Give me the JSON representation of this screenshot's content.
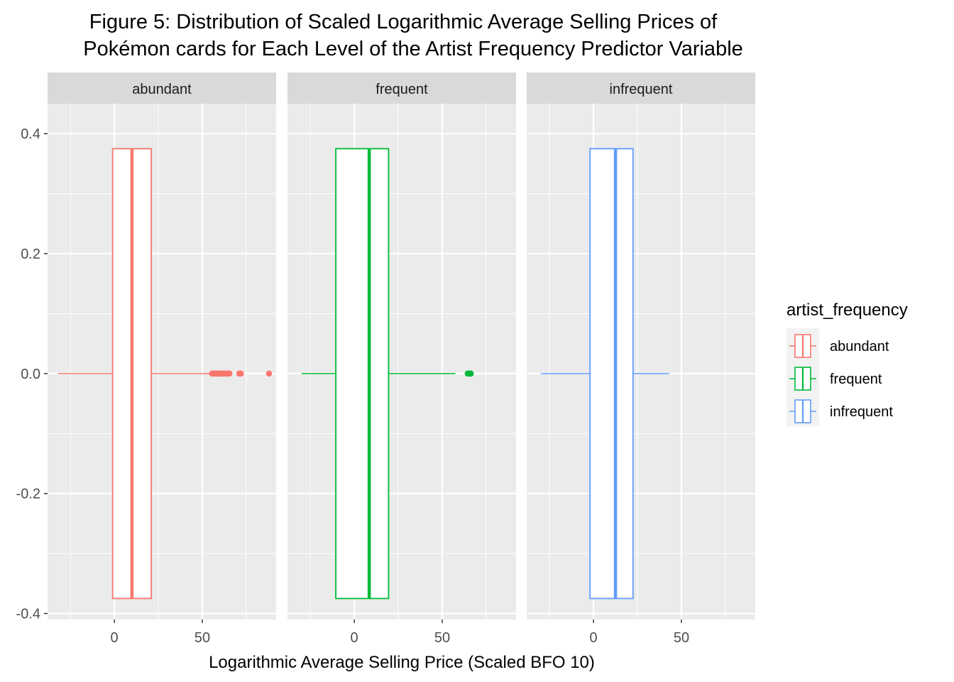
{
  "chart_data": {
    "type": "boxplot",
    "title_lines": [
      "Figure 5: Distribution of Scaled Logarithmic Average Selling Prices of",
      "Pokémon cards for Each Level of the Artist Frequency Predictor Variable"
    ],
    "xlabel": "Logarithmic Average Selling Price (Scaled BFO 10)",
    "ylabel": "",
    "xlim": [
      -38,
      92
    ],
    "ylim": [
      -0.41,
      0.45
    ],
    "x_ticks": [
      0,
      50
    ],
    "y_ticks": [
      -0.4,
      -0.2,
      0.0,
      0.2,
      0.4
    ],
    "y_tick_labels": [
      "-0.4",
      "-0.2",
      "0.0",
      "0.2",
      "0.4"
    ],
    "box_y_extent": [
      -0.375,
      0.375
    ],
    "grid": true,
    "legend": {
      "title": "artist_frequency",
      "position": "right",
      "entries": [
        "abundant",
        "frequent",
        "infrequent"
      ]
    },
    "facets": [
      {
        "name": "abundant",
        "color": "#F8766D",
        "whisker_low": -32,
        "q1": -1,
        "median": 10,
        "q3": 21,
        "whisker_high": 55,
        "outliers": [
          55.5,
          56,
          56.5,
          57,
          57.5,
          58,
          58.5,
          59,
          59.5,
          60,
          60.5,
          61,
          61.5,
          62,
          62.5,
          63,
          63.5,
          64,
          64.5,
          65,
          65.5,
          71,
          71.5,
          72,
          88
        ]
      },
      {
        "name": "frequent",
        "color": "#00BA38",
        "whisker_low": -30,
        "q1": -10.5,
        "median": 8.5,
        "q3": 19.5,
        "whisker_high": 57.5,
        "outliers": [
          64.5,
          65,
          65.3,
          65.6,
          66,
          66.3
        ]
      },
      {
        "name": "infrequent",
        "color": "#619CFF",
        "whisker_low": -30,
        "q1": -2,
        "median": 12.5,
        "q3": 22.5,
        "whisker_high": 43,
        "outliers": []
      }
    ]
  }
}
